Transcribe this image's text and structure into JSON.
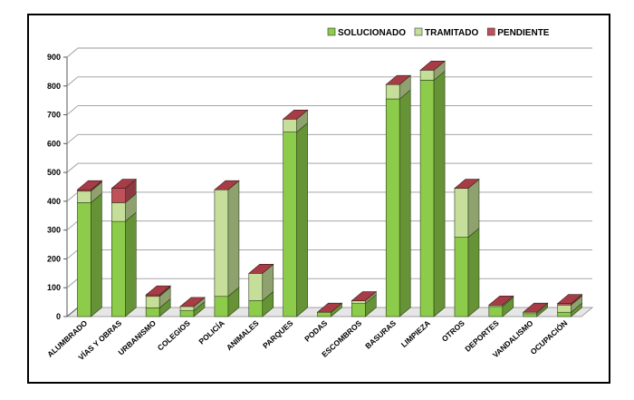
{
  "chart_data": {
    "type": "bar",
    "stacked": true,
    "three_d": true,
    "categories": [
      "ALUMBRADO",
      "VÍAS Y OBRAS",
      "URBANISMO",
      "COLEGIOS",
      "POLICÍA",
      "ANIMALES",
      "PARQUES",
      "PODAS",
      "ESCOMBROS",
      "BASURAS",
      "LIMPIEZA",
      "OTROS",
      "DEPORTES",
      "VANDALISMO",
      "OCUPACIÓN"
    ],
    "series": [
      {
        "name": "SOLUCIONADO",
        "color": "#8ccc4a",
        "values": [
          395,
          330,
          30,
          20,
          70,
          55,
          640,
          15,
          45,
          755,
          820,
          275,
          35,
          10,
          15
        ]
      },
      {
        "name": "TRAMITADO",
        "color": "#c5df9a",
        "values": [
          40,
          65,
          40,
          15,
          370,
          95,
          45,
          0,
          10,
          50,
          35,
          170,
          5,
          5,
          25
        ]
      },
      {
        "name": "PENDIENTE",
        "color": "#c0505a",
        "values": [
          5,
          50,
          5,
          0,
          0,
          0,
          0,
          0,
          0,
          0,
          0,
          0,
          0,
          0,
          5
        ]
      }
    ],
    "yticks": [
      "0",
      "100",
      "200",
      "300",
      "400",
      "500",
      "600",
      "700",
      "800",
      "900"
    ],
    "ylim": [
      0,
      900
    ],
    "grid": true,
    "legend": "top-right"
  }
}
